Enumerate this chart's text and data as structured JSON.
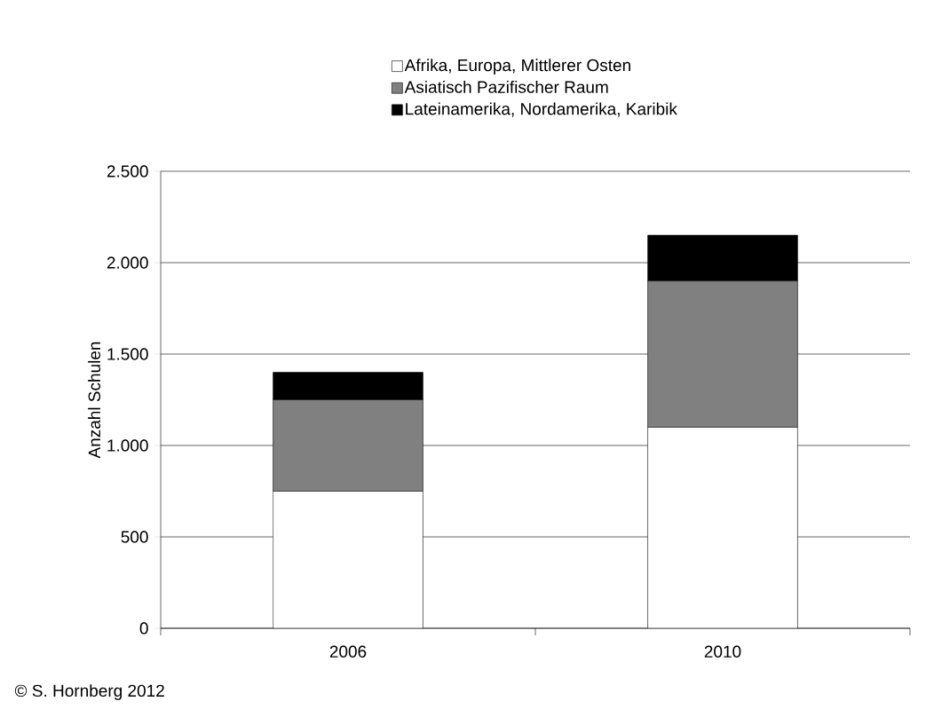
{
  "chart_data": {
    "type": "bar",
    "stacked": true,
    "ylabel": "Anzahl Schulen",
    "categories": [
      "2006",
      "2010"
    ],
    "series": [
      {
        "name": "Afrika, Europa, Mittlerer Osten",
        "color": "#ffffff",
        "values": [
          750,
          1100
        ]
      },
      {
        "name": "Asiatisch Pazifischer Raum",
        "color": "#808080",
        "values": [
          500,
          800
        ]
      },
      {
        "name": "Lateinamerika, Nordamerika, Karibik",
        "color": "#000000",
        "values": [
          150,
          250
        ]
      }
    ],
    "ylim": [
      0,
      2500
    ],
    "yticks": [
      0,
      500,
      {
        "value": 1000,
        "label": "1.000"
      },
      {
        "value": 1500,
        "label": "1.500"
      },
      {
        "value": 2000,
        "label": "2.000"
      },
      {
        "value": 2500,
        "label": "2.500"
      }
    ],
    "grid": "y",
    "legend": "top",
    "annotations": [
      "© S. Hornberg 2012"
    ]
  }
}
